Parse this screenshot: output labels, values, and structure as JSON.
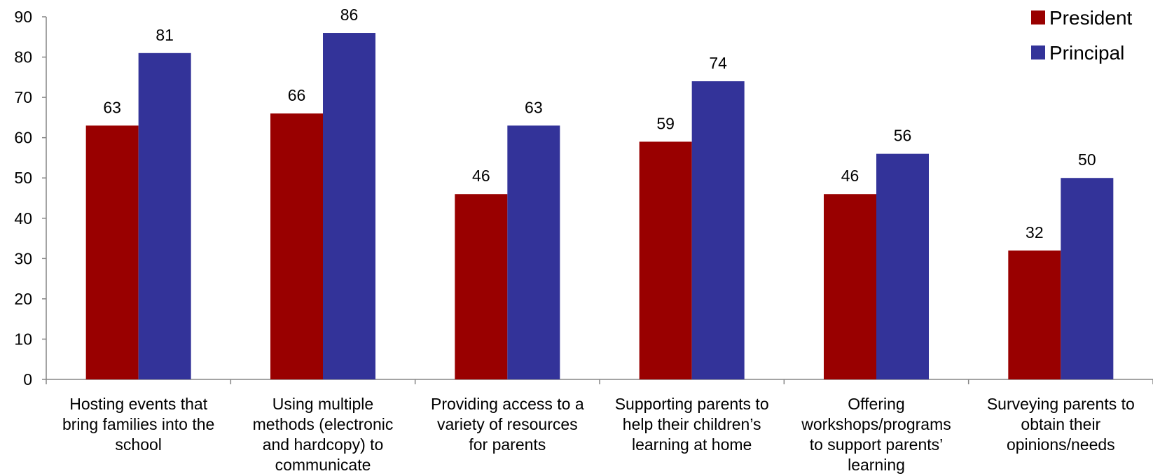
{
  "chart_data": {
    "type": "bar",
    "title": "",
    "xlabel": "",
    "ylabel": "",
    "ylim": [
      0,
      90
    ],
    "yticks": [
      0,
      10,
      20,
      30,
      40,
      50,
      60,
      70,
      80,
      90
    ],
    "grid": false,
    "legend_position": "top-right",
    "categories": [
      [
        "Hosting events that",
        "bring families into the",
        "school"
      ],
      [
        "Using multiple",
        "methods (electronic",
        "and hardcopy) to",
        "communicate"
      ],
      [
        "Providing access to a",
        "variety of resources",
        "for parents"
      ],
      [
        "Supporting parents to",
        "help their children’s",
        "learning at home"
      ],
      [
        "Offering",
        "workshops/programs",
        "to support parents’",
        "learning"
      ],
      [
        "Surveying parents to",
        "obtain their",
        "opinions/needs"
      ]
    ],
    "series": [
      {
        "name": "President",
        "color": "#990000",
        "values": [
          63,
          66,
          46,
          59,
          46,
          32
        ]
      },
      {
        "name": "Principal",
        "color": "#333399",
        "values": [
          81,
          86,
          63,
          74,
          56,
          50
        ]
      }
    ]
  }
}
